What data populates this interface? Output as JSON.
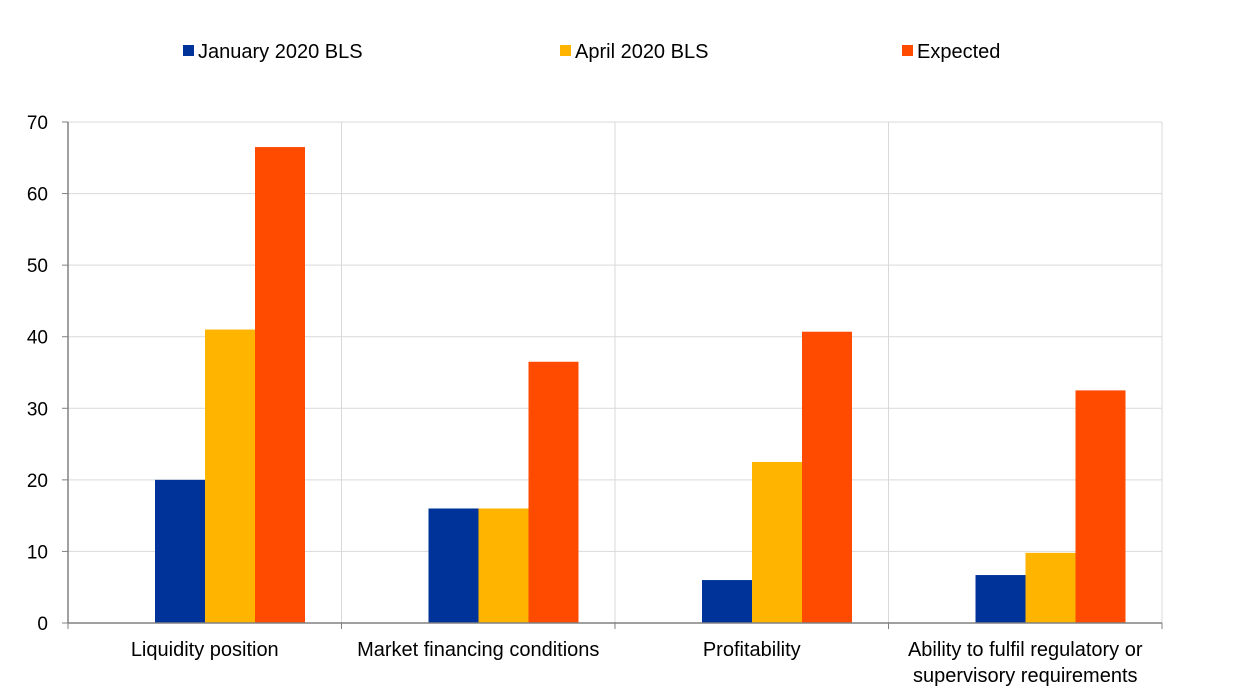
{
  "chart_data": {
    "type": "bar",
    "categories": [
      [
        "Liquidity position"
      ],
      [
        "Market financing conditions"
      ],
      [
        "Profitability"
      ],
      [
        "Ability to fulfil regulatory or",
        "supervisory requirements"
      ]
    ],
    "series": [
      {
        "name": "January 2020 BLS",
        "color": "#003399",
        "values": [
          20,
          16,
          6,
          6.7
        ]
      },
      {
        "name": "April 2020 BLS",
        "color": "#FFB400",
        "values": [
          41,
          16,
          22.5,
          9.8
        ]
      },
      {
        "name": "Expected",
        "color": "#FF4B00",
        "values": [
          66.5,
          36.5,
          40.7,
          32.5
        ]
      }
    ],
    "ylim": [
      0,
      70
    ],
    "yticks": [
      "0",
      "10",
      "20",
      "30",
      "40",
      "50",
      "60",
      "70"
    ],
    "grid": true,
    "legend_position": "top"
  }
}
